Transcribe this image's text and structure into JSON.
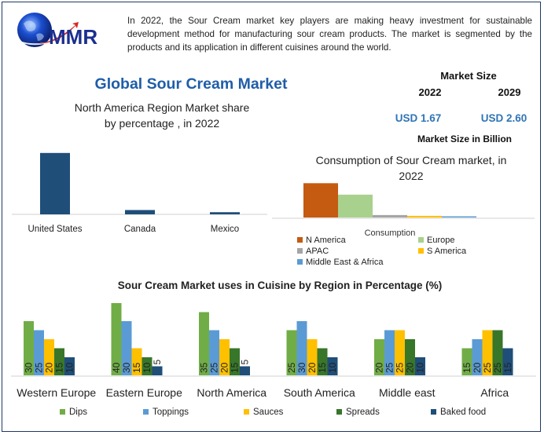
{
  "intro_text": "In 2022, the Sour Cream market key players are making heavy investment for sustainable development method for manufacturing sour cream products. The market is segmented by the products and its application in different cuisines around the world.",
  "logo": {
    "text": "MMR"
  },
  "main_title": "Global Sour Cream Market",
  "market_size": {
    "heading": "Market Size",
    "years": [
      "2022",
      "2029"
    ],
    "values": [
      "USD 1.67",
      "USD 2.60"
    ],
    "footer": "Market Size in Billion"
  },
  "colors": {
    "title_blue": "#1f5ea8",
    "value_blue": "#2e75b6",
    "dips": "#70ad47",
    "toppings": "#5b9bd5",
    "sauces": "#ffc000",
    "spreads": "#38762a",
    "baked_food": "#1f4e79",
    "na_bar": "#1f4e79"
  },
  "chart_data": [
    {
      "type": "bar",
      "title": "North America Region Market share by percentage , in 2022",
      "title_lines": [
        "North America Region Market share",
        "by percentage , in 2022"
      ],
      "categories": [
        "United States",
        "Canada",
        "Mexico"
      ],
      "values": [
        85,
        6,
        3
      ],
      "ylim": [
        0,
        100
      ],
      "xlabel": "",
      "ylabel": "",
      "grid": false,
      "legend": "none"
    },
    {
      "type": "bar",
      "title": "Consumption of Sour Cream market, in 2022",
      "title_lines": [
        "Consumption of Sour Cream market, in",
        "2022"
      ],
      "xlabel": "Consumption",
      "categories": [
        "Consumption"
      ],
      "series": [
        {
          "name": "N America",
          "values": [
            42
          ],
          "color": "#c55a11"
        },
        {
          "name": "Europe",
          "values": [
            28
          ],
          "color": "#a9d18e"
        },
        {
          "name": "APAC",
          "values": [
            3
          ],
          "color": "#a5a5a5"
        },
        {
          "name": "S America",
          "values": [
            2
          ],
          "color": "#ffc000"
        },
        {
          "name": "Middle East & Africa",
          "values": [
            1
          ],
          "color": "#5b9bd5"
        }
      ],
      "ylim": [
        0,
        50
      ],
      "grid": false,
      "legend": "bottom"
    },
    {
      "type": "bar",
      "title": "Sour Cream Market uses in Cuisine by Region in Percentage (%)",
      "categories": [
        "Western Europe",
        "Eastern Europe",
        "North America",
        "South America",
        "Middle east",
        "Africa"
      ],
      "series": [
        {
          "name": "Dips",
          "values": [
            30,
            40,
            35,
            25,
            20,
            15
          ],
          "color": "#70ad47"
        },
        {
          "name": "Toppings",
          "values": [
            25,
            30,
            25,
            30,
            25,
            20
          ],
          "color": "#5b9bd5"
        },
        {
          "name": "Sauces",
          "values": [
            20,
            15,
            20,
            20,
            25,
            25
          ],
          "color": "#ffc000"
        },
        {
          "name": "Spreads",
          "values": [
            15,
            10,
            15,
            15,
            20,
            25
          ],
          "color": "#38762a"
        },
        {
          "name": "Baked food",
          "values": [
            10,
            5,
            5,
            10,
            10,
            15
          ],
          "color": "#1f4e79"
        }
      ],
      "ylim": [
        0,
        40
      ],
      "grid": false,
      "legend": "bottom"
    }
  ]
}
